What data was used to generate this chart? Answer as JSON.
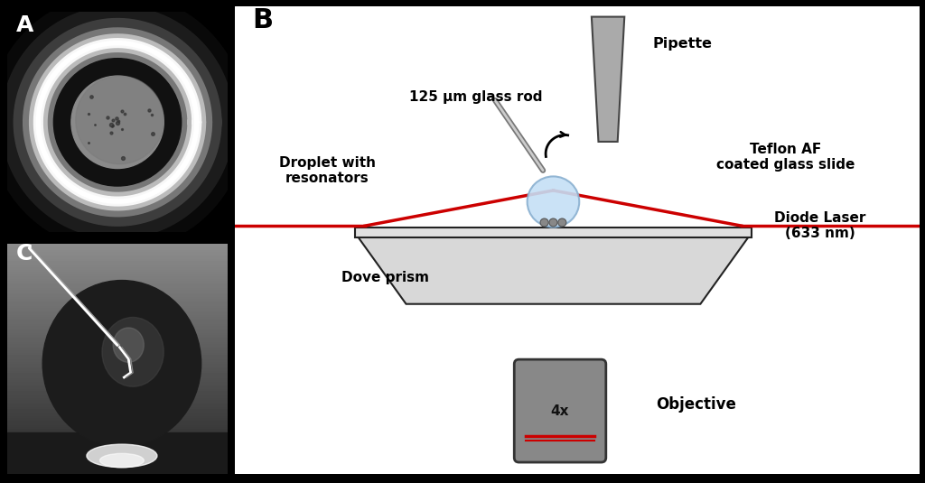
{
  "fig_width": 10.24,
  "fig_height": 5.35,
  "bg_color": "#000000",
  "panel_B": {
    "label": "B",
    "bg": "#ffffff",
    "labels": {
      "pipette": "Pipette",
      "glass_rod": "125 μm glass rod",
      "droplet": "Droplet with\nresonators",
      "teflon": "Teflon AF\ncoated glass slide",
      "laser": "Diode Laser\n(633 nm)",
      "dove": "Dove prism",
      "objective_label": "Objective",
      "objective_4x": "4x"
    }
  }
}
